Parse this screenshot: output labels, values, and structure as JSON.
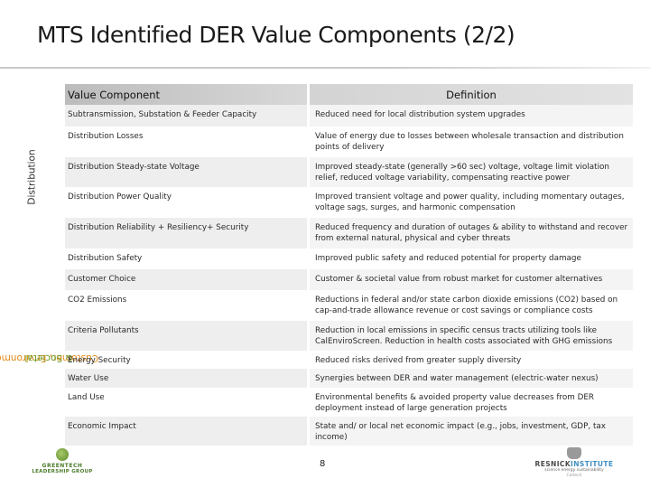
{
  "title": "MTS Identified DER Value Components (2/2)",
  "headers": {
    "component": "Value Component",
    "definition": "Definition"
  },
  "groups": {
    "distribution": "Distribution",
    "customer_line1": "Customer, Environmental",
    "customer_line2": "& Societal"
  },
  "rows": [
    {
      "component": "Subtransmission, Substation & Feeder Capacity",
      "definition": "Reduced need for local distribution system upgrades"
    },
    {
      "component": "Distribution Losses",
      "definition": "Value of energy due to losses between wholesale transaction and distribution points of delivery"
    },
    {
      "component": "Distribution Steady-state Voltage",
      "definition": "Improved steady-state (generally >60 sec) voltage, voltage limit violation relief, reduced voltage variability, compensating reactive power"
    },
    {
      "component": "Distribution Power Quality",
      "definition": "Improved transient voltage and power quality, including momentary outages, voltage sags, surges, and harmonic compensation"
    },
    {
      "component": "Distribution Reliability + Resiliency+ Security",
      "definition": "Reduced frequency and duration of outages & ability to withstand and recover from external natural, physical and cyber threats"
    },
    {
      "component": "Distribution Safety",
      "definition": "Improved public safety and reduced potential for property damage"
    },
    {
      "component": "Customer Choice",
      "definition": "Customer & societal value from robust market for customer alternatives"
    },
    {
      "component": "CO2 Emissions",
      "definition": "Reductions in federal and/or state carbon dioxide emissions (CO2) based on cap-and-trade allowance revenue or cost savings or compliance costs"
    },
    {
      "component": "Criteria Pollutants",
      "definition": "Reduction in local emissions in specific census tracts utilizing tools like CalEnviroScreen. Reduction in health costs associated with GHG emissions"
    },
    {
      "component": "Energy Security",
      "definition": "Reduced risks derived from greater supply diversity"
    },
    {
      "component": "Water Use",
      "definition": "Synergies between DER and water management (electric-water nexus)"
    },
    {
      "component": "Land Use",
      "definition": "Environmental benefits & avoided property value decreases from DER deployment instead of large generation projects"
    },
    {
      "component": "Economic Impact",
      "definition": "State and/ or local net economic impact (e.g., jobs, investment, GDP, tax income)"
    }
  ],
  "page_number": "8",
  "footer": {
    "left_logo_line1": "GREENTECH",
    "left_logo_line2": "LEADERSHIP GROUP",
    "right_logo_name_a": "RESNICK",
    "right_logo_name_b": "INSTITUTE",
    "right_logo_tagline": "science energy sustainability",
    "right_logo_sub": "Caltech"
  }
}
